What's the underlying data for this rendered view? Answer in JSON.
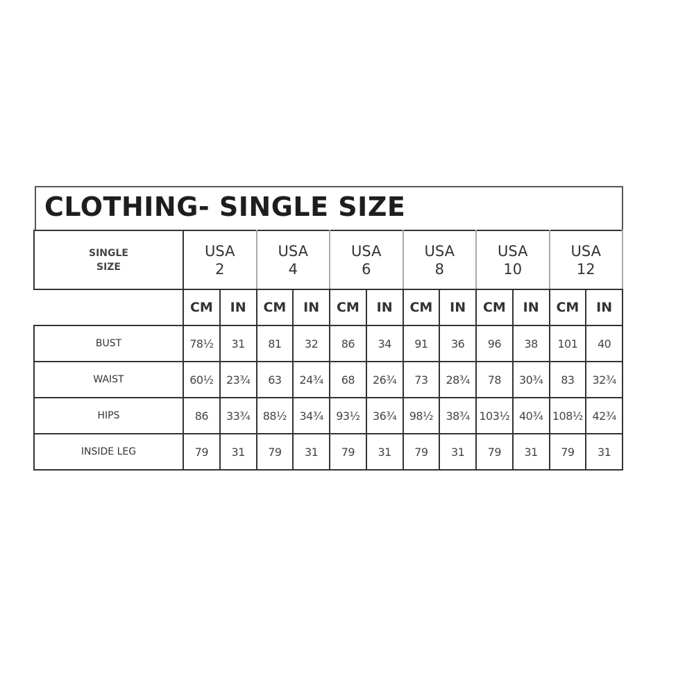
{
  "title": "CLOTHING- SINGLE SIZE",
  "header_label": [
    "SINGLE",
    "SIZE"
  ],
  "sizes": [
    {
      "country": "USA",
      "size": "2"
    },
    {
      "country": "USA",
      "size": "4"
    },
    {
      "country": "USA",
      "size": "6"
    },
    {
      "country": "USA",
      "size": "8"
    },
    {
      "country": "USA",
      "size": "10"
    },
    {
      "country": "USA",
      "size": "12"
    }
  ],
  "units": [
    "CM",
    "IN"
  ],
  "rows": [
    {
      "label": "BUST",
      "values": [
        "78½",
        "31",
        "81",
        "32",
        "86",
        "34",
        "91",
        "36",
        "96",
        "38",
        "101",
        "40"
      ]
    },
    {
      "label": "WAIST",
      "values": [
        "60½",
        "23¾",
        "63",
        "24¾",
        "68",
        "26¾",
        "73",
        "28¾",
        "78",
        "30¾",
        "83",
        "32¾"
      ]
    },
    {
      "label": "HIPS",
      "values": [
        "86",
        "33¾",
        "88½",
        "34¾",
        "93½",
        "36¾",
        "98½",
        "38¾",
        "103½",
        "40¾",
        "108½",
        "42¾"
      ]
    },
    {
      "label": "INSIDE LEG",
      "values": [
        "79",
        "31",
        "79",
        "31",
        "79",
        "31",
        "79",
        "31",
        "79",
        "31",
        "79",
        "31"
      ]
    }
  ]
}
